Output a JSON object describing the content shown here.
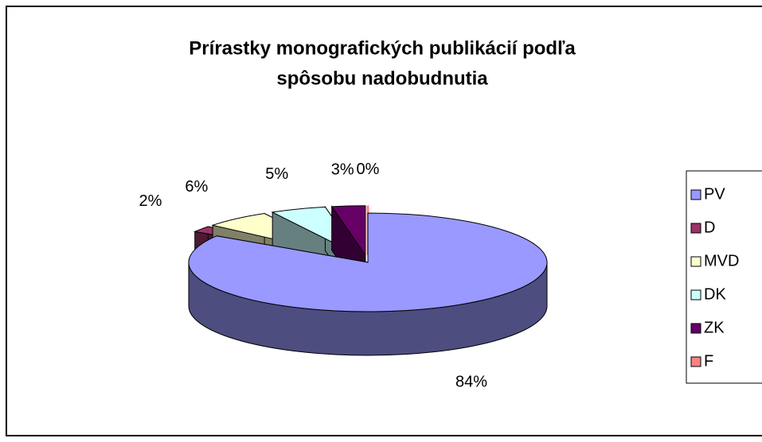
{
  "chart_data": {
    "type": "pie3d",
    "title": [
      "Prírastky monografických publikácií podľa",
      "spôsobu nadobudnutia"
    ],
    "categories": [
      "PV",
      "D",
      "MVD",
      "DK",
      "ZK",
      "F"
    ],
    "values": [
      84,
      2,
      6,
      5,
      3,
      0
    ],
    "value_labels": [
      "84%",
      "2%",
      "6%",
      "5%",
      "3%",
      "0%"
    ],
    "colors": [
      "#9999ff",
      "#993366",
      "#ffffcc",
      "#ccffff",
      "#660066",
      "#ff8080"
    ],
    "legend": "right"
  }
}
